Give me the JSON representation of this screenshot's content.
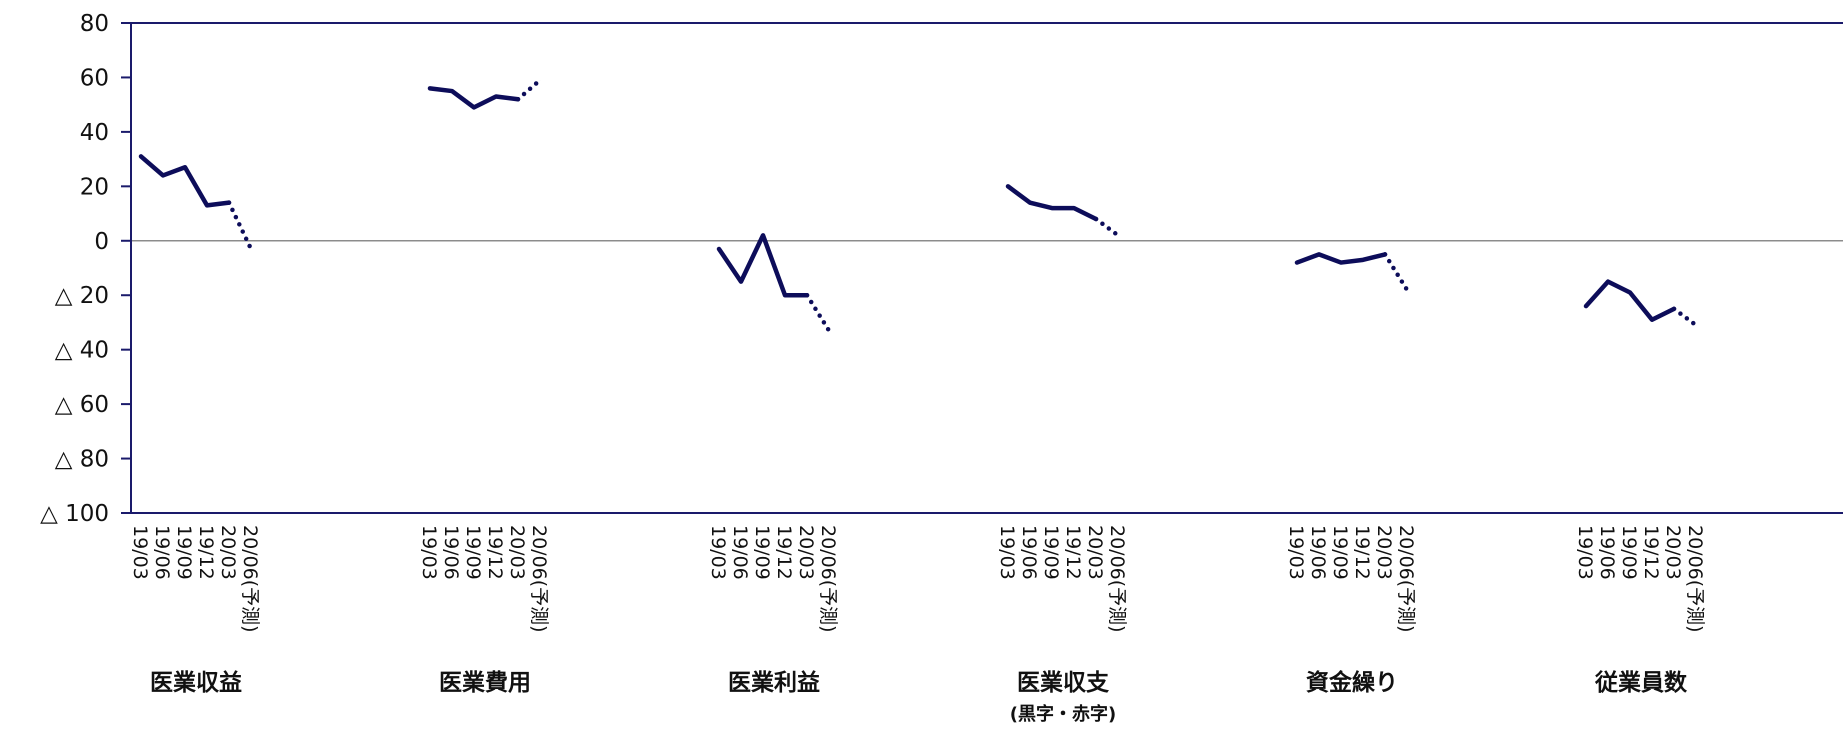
{
  "colors": {
    "series": "#0d0d5a",
    "frame": "#1a1a6b",
    "zero_line": "#8c8c8c",
    "text": "#111111"
  },
  "chart_data": {
    "type": "line",
    "ylim": [
      -100,
      80
    ],
    "yticks": [
      {
        "value": 80,
        "label": "80"
      },
      {
        "value": 60,
        "label": "60"
      },
      {
        "value": 40,
        "label": "40"
      },
      {
        "value": 20,
        "label": "20"
      },
      {
        "value": 0,
        "label": "0"
      },
      {
        "value": -20,
        "label": "△ 20"
      },
      {
        "value": -40,
        "label": "△ 40"
      },
      {
        "value": -60,
        "label": "△ 60"
      },
      {
        "value": -80,
        "label": "△ 80"
      },
      {
        "value": -100,
        "label": "△ 100"
      }
    ],
    "x_categories": [
      "19/03",
      "19/06",
      "19/09",
      "19/12",
      "20/03",
      "20/06(予測)"
    ],
    "actual_periods": 5,
    "forecast_style": "dotted",
    "grid": false,
    "groups": [
      {
        "label": "医業収益",
        "sublabel": "",
        "values": [
          31,
          24,
          27,
          13,
          14,
          -3
        ]
      },
      {
        "label": "医業費用",
        "sublabel": "",
        "values": [
          56,
          55,
          49,
          53,
          52,
          59
        ]
      },
      {
        "label": "医業利益",
        "sublabel": "",
        "values": [
          -3,
          -15,
          2,
          -20,
          -20,
          -33
        ]
      },
      {
        "label": "医業収支",
        "sublabel": "(黒字・赤字)",
        "values": [
          20,
          14,
          12,
          12,
          8,
          2
        ]
      },
      {
        "label": "資金繰り",
        "sublabel": "",
        "values": [
          -8,
          -5,
          -8,
          -7,
          -5,
          -18
        ]
      },
      {
        "label": "従業員数",
        "sublabel": "",
        "values": [
          -24,
          -15,
          -19,
          -29,
          -25,
          -31
        ]
      }
    ]
  }
}
